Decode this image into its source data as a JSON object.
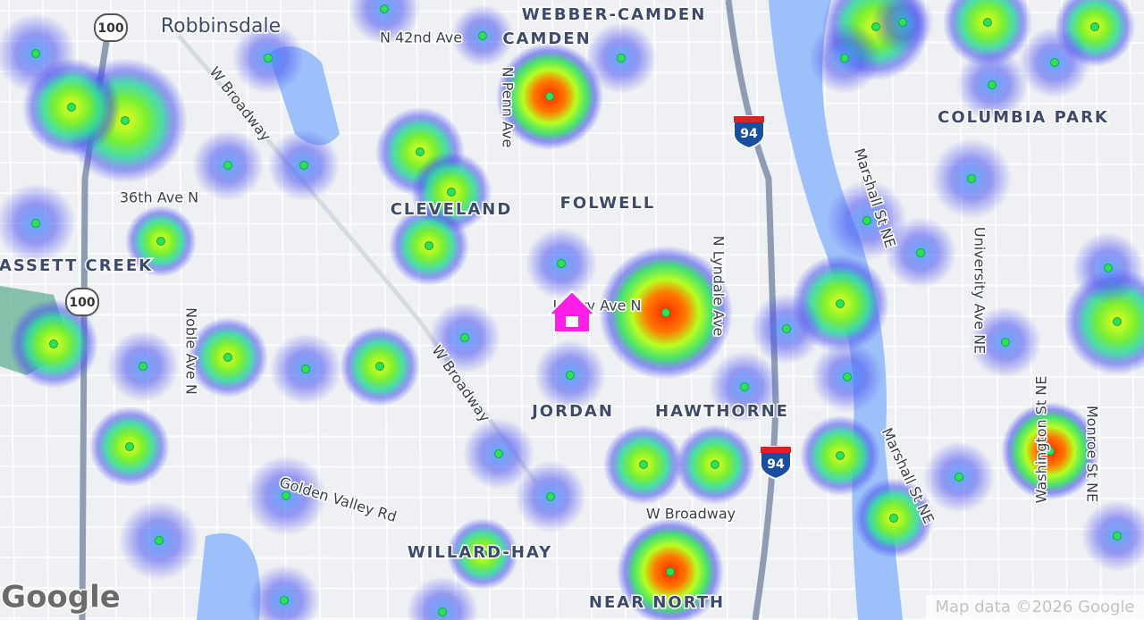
{
  "map": {
    "place_labels": [
      "Robbinsdale",
      "WEBBER-CAMDEN",
      "CAMDEN",
      "COLUMBIA PARK",
      "CLEVELAND",
      "FOLWELL",
      "ASSETT CREEK",
      "JORDAN",
      "HAWTHORNE",
      "WILLARD-HAY",
      "NEAR NORTH"
    ],
    "road_labels": [
      "N 42nd Ave",
      "W Broadway",
      "N Penn Ave",
      "Marshall St NE",
      "36th Ave N",
      "N Lyndale Ave",
      "University Ave NE",
      "Lowry Ave N",
      "Noble Ave N",
      "W Broadway",
      "Marshall St NE",
      "Washington St NE",
      "Monroe St NE",
      "Golden Valley Rd",
      "W Broadway"
    ],
    "highway_shields": [
      "100",
      "100",
      "94",
      "94"
    ],
    "attribution": {
      "logo": "Google",
      "text": "Map data ©2026 Google"
    }
  }
}
